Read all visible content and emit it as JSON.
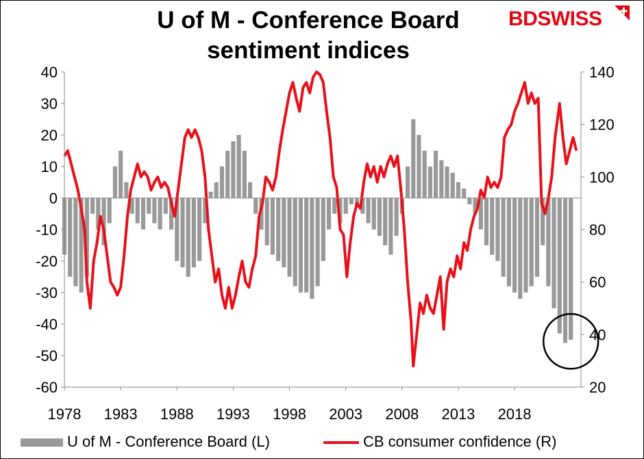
{
  "title_line1": "U of M - Conference Board",
  "title_line2": "sentiment indices",
  "logo": {
    "part1": "BD",
    "part2": "SWISS"
  },
  "colors": {
    "bars": "#999999",
    "line": "#e8101a",
    "circle": "#000000"
  },
  "chart_data": {
    "type": "bar+line",
    "x_tick_labels": [
      "1978",
      "1983",
      "1988",
      "1993",
      "1998",
      "2003",
      "2008",
      "2013",
      "2018"
    ],
    "left_axis": {
      "ticks": [
        40,
        30,
        20,
        10,
        0,
        -10,
        -20,
        -30,
        -40,
        -50,
        -60
      ],
      "ylim": [
        -60,
        40
      ]
    },
    "right_axis": {
      "ticks": [
        140,
        120,
        100,
        80,
        60,
        40,
        20
      ],
      "ylim": [
        20,
        140
      ]
    },
    "xlim": [
      1978,
      2023.9
    ],
    "annotation": "circle around 2022-2023",
    "series": [
      {
        "name": "U of M - Conference Board (L)",
        "type": "bar",
        "axis": "left",
        "points": [
          [
            1978.0,
            -18
          ],
          [
            1978.5,
            -25
          ],
          [
            1979.0,
            -28
          ],
          [
            1979.5,
            -30
          ],
          [
            1980.0,
            -25
          ],
          [
            1980.5,
            -5
          ],
          [
            1981.0,
            -10
          ],
          [
            1981.5,
            -15
          ],
          [
            1982.0,
            -8
          ],
          [
            1982.5,
            10
          ],
          [
            1983.0,
            15
          ],
          [
            1983.5,
            5
          ],
          [
            1984.0,
            -5
          ],
          [
            1984.5,
            -8
          ],
          [
            1985.0,
            -10
          ],
          [
            1985.5,
            -5
          ],
          [
            1986.0,
            -8
          ],
          [
            1986.5,
            -10
          ],
          [
            1987.0,
            -5
          ],
          [
            1987.5,
            -10
          ],
          [
            1988.0,
            -20
          ],
          [
            1988.5,
            -22
          ],
          [
            1989.0,
            -25
          ],
          [
            1989.5,
            -22
          ],
          [
            1990.0,
            -20
          ],
          [
            1990.5,
            -8
          ],
          [
            1991.0,
            2
          ],
          [
            1991.5,
            5
          ],
          [
            1992.0,
            10
          ],
          [
            1992.5,
            15
          ],
          [
            1993.0,
            18
          ],
          [
            1993.5,
            20
          ],
          [
            1994.0,
            15
          ],
          [
            1994.5,
            5
          ],
          [
            1995.0,
            -5
          ],
          [
            1995.5,
            -10
          ],
          [
            1996.0,
            -15
          ],
          [
            1996.5,
            -18
          ],
          [
            1997.0,
            -20
          ],
          [
            1997.5,
            -22
          ],
          [
            1998.0,
            -25
          ],
          [
            1998.5,
            -28
          ],
          [
            1999.0,
            -30
          ],
          [
            1999.5,
            -30
          ],
          [
            2000.0,
            -32
          ],
          [
            2000.5,
            -28
          ],
          [
            2001.0,
            -20
          ],
          [
            2001.5,
            -10
          ],
          [
            2002.0,
            -5
          ],
          [
            2002.5,
            -8
          ],
          [
            2003.0,
            -5
          ],
          [
            2003.5,
            -2
          ],
          [
            2004.0,
            -3
          ],
          [
            2004.5,
            -5
          ],
          [
            2005.0,
            -8
          ],
          [
            2005.5,
            -10
          ],
          [
            2006.0,
            -12
          ],
          [
            2006.5,
            -15
          ],
          [
            2007.0,
            -18
          ],
          [
            2007.5,
            -12
          ],
          [
            2008.0,
            -5
          ],
          [
            2008.5,
            10
          ],
          [
            2009.0,
            25
          ],
          [
            2009.5,
            20
          ],
          [
            2010.0,
            15
          ],
          [
            2010.5,
            10
          ],
          [
            2011.0,
            15
          ],
          [
            2011.5,
            12
          ],
          [
            2012.0,
            10
          ],
          [
            2012.5,
            8
          ],
          [
            2013.0,
            5
          ],
          [
            2013.5,
            3
          ],
          [
            2014.0,
            -2
          ],
          [
            2014.5,
            -5
          ],
          [
            2015.0,
            -10
          ],
          [
            2015.5,
            -15
          ],
          [
            2016.0,
            -18
          ],
          [
            2016.5,
            -20
          ],
          [
            2017.0,
            -25
          ],
          [
            2017.5,
            -28
          ],
          [
            2018.0,
            -30
          ],
          [
            2018.5,
            -32
          ],
          [
            2019.0,
            -30
          ],
          [
            2019.5,
            -28
          ],
          [
            2020.0,
            -25
          ],
          [
            2020.5,
            -15
          ],
          [
            2021.0,
            -28
          ],
          [
            2021.5,
            -35
          ],
          [
            2022.0,
            -43
          ],
          [
            2022.5,
            -46
          ],
          [
            2023.0,
            -45
          ]
        ]
      },
      {
        "name": "CB consumer confidence (R)",
        "type": "line",
        "axis": "right",
        "points": [
          [
            1978.0,
            108
          ],
          [
            1978.3,
            110
          ],
          [
            1978.6,
            105
          ],
          [
            1978.9,
            100
          ],
          [
            1979.2,
            95
          ],
          [
            1979.5,
            88
          ],
          [
            1979.8,
            80
          ],
          [
            1980.0,
            60
          ],
          [
            1980.3,
            50
          ],
          [
            1980.6,
            68
          ],
          [
            1980.9,
            75
          ],
          [
            1981.2,
            85
          ],
          [
            1981.5,
            80
          ],
          [
            1981.8,
            70
          ],
          [
            1982.1,
            60
          ],
          [
            1982.4,
            58
          ],
          [
            1982.7,
            55
          ],
          [
            1983.0,
            58
          ],
          [
            1983.3,
            70
          ],
          [
            1983.6,
            85
          ],
          [
            1983.9,
            95
          ],
          [
            1984.2,
            100
          ],
          [
            1984.5,
            105
          ],
          [
            1984.8,
            100
          ],
          [
            1985.1,
            102
          ],
          [
            1985.4,
            100
          ],
          [
            1985.7,
            95
          ],
          [
            1986.0,
            98
          ],
          [
            1986.3,
            100
          ],
          [
            1986.6,
            96
          ],
          [
            1986.9,
            98
          ],
          [
            1987.2,
            96
          ],
          [
            1987.5,
            90
          ],
          [
            1987.8,
            85
          ],
          [
            1988.1,
            95
          ],
          [
            1988.4,
            105
          ],
          [
            1988.7,
            115
          ],
          [
            1989.0,
            118
          ],
          [
            1989.3,
            115
          ],
          [
            1989.6,
            118
          ],
          [
            1989.9,
            115
          ],
          [
            1990.2,
            110
          ],
          [
            1990.5,
            100
          ],
          [
            1990.8,
            80
          ],
          [
            1991.1,
            70
          ],
          [
            1991.4,
            60
          ],
          [
            1991.7,
            65
          ],
          [
            1992.0,
            55
          ],
          [
            1992.3,
            50
          ],
          [
            1992.6,
            58
          ],
          [
            1992.9,
            50
          ],
          [
            1993.2,
            55
          ],
          [
            1993.5,
            62
          ],
          [
            1993.8,
            68
          ],
          [
            1994.1,
            60
          ],
          [
            1994.4,
            58
          ],
          [
            1994.7,
            65
          ],
          [
            1995.0,
            70
          ],
          [
            1995.3,
            85
          ],
          [
            1995.6,
            90
          ],
          [
            1995.9,
            100
          ],
          [
            1996.2,
            98
          ],
          [
            1996.5,
            95
          ],
          [
            1996.8,
            100
          ],
          [
            1997.1,
            110
          ],
          [
            1997.4,
            118
          ],
          [
            1997.7,
            125
          ],
          [
            1998.0,
            132
          ],
          [
            1998.3,
            136
          ],
          [
            1998.6,
            130
          ],
          [
            1998.9,
            125
          ],
          [
            1999.2,
            134
          ],
          [
            1999.5,
            136
          ],
          [
            1999.8,
            132
          ],
          [
            2000.1,
            138
          ],
          [
            2000.4,
            140
          ],
          [
            2000.7,
            139
          ],
          [
            2001.0,
            136
          ],
          [
            2001.3,
            125
          ],
          [
            2001.6,
            115
          ],
          [
            2001.9,
            100
          ],
          [
            2002.2,
            96
          ],
          [
            2002.5,
            80
          ],
          [
            2002.8,
            78
          ],
          [
            2003.1,
            62
          ],
          [
            2003.4,
            75
          ],
          [
            2003.7,
            85
          ],
          [
            2004.0,
            90
          ],
          [
            2004.3,
            88
          ],
          [
            2004.6,
            98
          ],
          [
            2004.9,
            105
          ],
          [
            2005.2,
            100
          ],
          [
            2005.5,
            104
          ],
          [
            2005.8,
            98
          ],
          [
            2006.1,
            104
          ],
          [
            2006.4,
            100
          ],
          [
            2006.7,
            105
          ],
          [
            2007.0,
            108
          ],
          [
            2007.3,
            104
          ],
          [
            2007.6,
            108
          ],
          [
            2007.9,
            95
          ],
          [
            2008.2,
            80
          ],
          [
            2008.5,
            60
          ],
          [
            2008.8,
            45
          ],
          [
            2009.0,
            28
          ],
          [
            2009.3,
            40
          ],
          [
            2009.6,
            52
          ],
          [
            2009.9,
            48
          ],
          [
            2010.2,
            55
          ],
          [
            2010.5,
            50
          ],
          [
            2010.8,
            48
          ],
          [
            2011.1,
            55
          ],
          [
            2011.4,
            62
          ],
          [
            2011.7,
            42
          ],
          [
            2012.0,
            60
          ],
          [
            2012.3,
            65
          ],
          [
            2012.6,
            62
          ],
          [
            2012.9,
            70
          ],
          [
            2013.2,
            65
          ],
          [
            2013.5,
            75
          ],
          [
            2013.8,
            72
          ],
          [
            2014.1,
            80
          ],
          [
            2014.4,
            85
          ],
          [
            2014.7,
            88
          ],
          [
            2015.0,
            95
          ],
          [
            2015.3,
            92
          ],
          [
            2015.6,
            100
          ],
          [
            2015.9,
            96
          ],
          [
            2016.2,
            98
          ],
          [
            2016.5,
            96
          ],
          [
            2016.8,
            100
          ],
          [
            2017.1,
            115
          ],
          [
            2017.4,
            118
          ],
          [
            2017.7,
            120
          ],
          [
            2018.0,
            125
          ],
          [
            2018.3,
            128
          ],
          [
            2018.6,
            132
          ],
          [
            2018.9,
            136
          ],
          [
            2019.2,
            128
          ],
          [
            2019.5,
            132
          ],
          [
            2019.8,
            128
          ],
          [
            2020.1,
            130
          ],
          [
            2020.4,
            90
          ],
          [
            2020.7,
            86
          ],
          [
            2021.0,
            92
          ],
          [
            2021.3,
            100
          ],
          [
            2021.6,
            115
          ],
          [
            2022.0,
            128
          ],
          [
            2022.3,
            115
          ],
          [
            2022.6,
            105
          ],
          [
            2022.9,
            110
          ],
          [
            2023.2,
            115
          ],
          [
            2023.5,
            110
          ]
        ]
      }
    ]
  },
  "legend": {
    "left": "U of M - Conference Board (L)",
    "right": "CB consumer confidence (R)"
  }
}
